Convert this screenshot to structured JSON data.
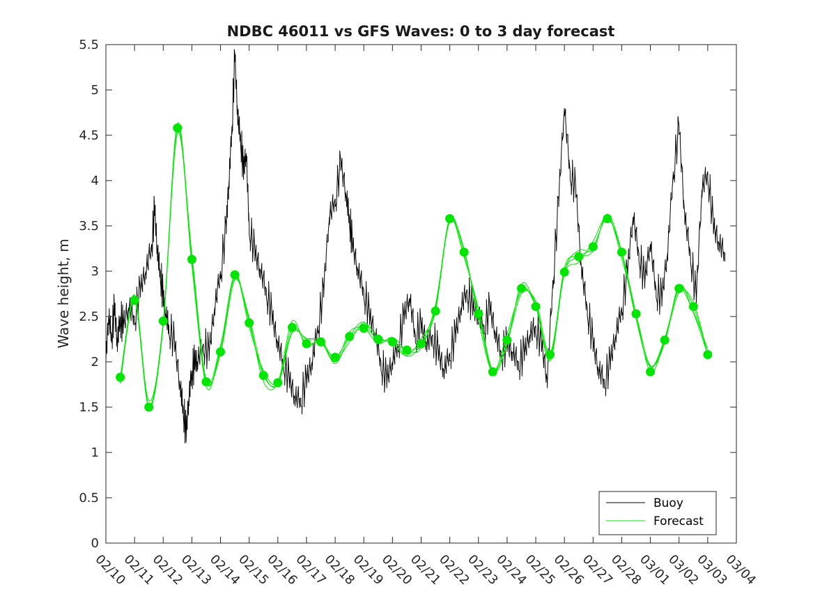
{
  "chart_data": {
    "type": "line",
    "title": "NDBC 46011 vs GFS Waves: 0 to 3 day forecast",
    "xlabel": "",
    "ylabel": "Wave height, m",
    "xlim": [
      0,
      22
    ],
    "ylim": [
      0,
      5.5
    ],
    "y_ticks": [
      "0",
      "0.5",
      "1",
      "1.5",
      "2",
      "2.5",
      "3",
      "3.5",
      "4",
      "4.5",
      "5",
      "5.5"
    ],
    "x_tick_labels": [
      "02/10",
      "02/11",
      "02/12",
      "02/13",
      "02/14",
      "02/15",
      "02/16",
      "02/17",
      "02/18",
      "02/19",
      "02/20",
      "02/21",
      "02/22",
      "02/23",
      "02/24",
      "02/25",
      "02/26",
      "02/27",
      "02/28",
      "03/01",
      "03/02",
      "03/03",
      "03/04"
    ],
    "legend_position": "bottom-right",
    "colors": {
      "buoy": "#000000",
      "forecast": "#00e600"
    },
    "series": [
      {
        "name": "Buoy",
        "x": [
          0,
          0.1,
          0.2,
          0.3,
          0.4,
          0.5,
          0.6,
          0.8,
          1.0,
          1.2,
          1.4,
          1.6,
          1.7,
          1.8,
          1.9,
          2.0,
          2.1,
          2.2,
          2.4,
          2.6,
          2.7,
          2.8,
          2.9,
          3.0,
          3.1,
          3.2,
          3.4,
          3.6,
          3.8,
          4.0,
          4.2,
          4.3,
          4.4,
          4.5,
          4.6,
          4.7,
          4.8,
          4.9,
          5.0,
          5.2,
          5.4,
          5.6,
          5.8,
          6.0,
          6.2,
          6.4,
          6.6,
          6.8,
          7.0,
          7.2,
          7.4,
          7.6,
          7.8,
          8.0,
          8.2,
          8.4,
          8.5,
          8.6,
          8.8,
          9.0,
          9.2,
          9.4,
          9.6,
          9.8,
          10.0,
          10.2,
          10.4,
          10.6,
          10.8,
          11.0,
          11.2,
          11.4,
          11.6,
          11.8,
          12.0,
          12.2,
          12.4,
          12.6,
          12.8,
          13.0,
          13.2,
          13.4,
          13.6,
          13.8,
          14.0,
          14.2,
          14.4,
          14.6,
          14.8,
          15.0,
          15.2,
          15.4,
          15.6,
          15.8,
          16.0,
          16.2,
          16.4,
          16.6,
          16.8,
          17.0,
          17.2,
          17.4,
          17.6,
          17.8,
          18.0,
          18.2,
          18.4,
          18.6,
          18.8,
          19.0,
          19.2,
          19.4,
          19.6,
          19.8,
          20.0,
          20.2,
          20.4,
          20.6,
          20.8,
          21.0,
          21.2,
          21.4,
          21.6
        ],
        "values": [
          2.0,
          2.5,
          2.3,
          2.6,
          2.2,
          2.5,
          2.4,
          2.6,
          2.5,
          2.8,
          3.0,
          3.3,
          3.7,
          3.2,
          3.0,
          2.7,
          2.5,
          2.4,
          2.2,
          1.7,
          1.5,
          1.2,
          1.6,
          1.9,
          2.0,
          2.0,
          2.2,
          2.1,
          2.6,
          3.0,
          3.5,
          4.0,
          4.6,
          5.4,
          4.7,
          4.5,
          4.1,
          4.3,
          3.5,
          3.2,
          3.0,
          2.8,
          2.5,
          2.2,
          2.0,
          1.8,
          1.6,
          1.6,
          1.8,
          2.0,
          2.4,
          2.8,
          3.6,
          3.8,
          4.2,
          3.8,
          3.6,
          3.3,
          3.0,
          2.8,
          2.5,
          2.3,
          2.0,
          1.8,
          2.0,
          2.2,
          2.5,
          2.7,
          2.3,
          2.4,
          2.2,
          2.3,
          2.1,
          1.9,
          2.1,
          2.3,
          2.6,
          2.8,
          2.6,
          2.5,
          2.4,
          2.6,
          2.3,
          2.1,
          2.2,
          2.1,
          2.0,
          2.1,
          2.3,
          2.4,
          2.2,
          1.8,
          2.9,
          3.8,
          4.8,
          4.1,
          3.9,
          3.0,
          2.6,
          2.2,
          1.9,
          1.8,
          2.0,
          2.3,
          2.6,
          3.0,
          3.6,
          3.2,
          2.9,
          3.3,
          2.8,
          2.7,
          3.2,
          4.1,
          4.6,
          3.6,
          3.2,
          2.7,
          3.9,
          4.1,
          3.5,
          3.3,
          3.2
        ]
      },
      {
        "name": "Forecast",
        "x": [
          0.5,
          1.0,
          1.5,
          2.0,
          2.5,
          3.0,
          3.5,
          4.0,
          4.5,
          5.0,
          5.5,
          6.0,
          6.5,
          7.0,
          7.5,
          8.0,
          8.5,
          9.0,
          9.5,
          10.0,
          10.5,
          11.0,
          11.5,
          12.0,
          12.5,
          13.0,
          13.5,
          14.0,
          14.5,
          15.0,
          15.5,
          16.0,
          16.5,
          17.0,
          17.5,
          18.0,
          18.5,
          19.0,
          19.5,
          20.0,
          20.5,
          21.0
        ],
        "values": [
          1.83,
          2.68,
          1.5,
          2.45,
          4.58,
          3.13,
          1.78,
          2.11,
          2.96,
          2.43,
          1.85,
          1.77,
          2.38,
          2.2,
          2.22,
          2.05,
          2.28,
          2.37,
          2.25,
          2.22,
          2.13,
          2.2,
          2.56,
          3.58,
          3.21,
          2.53,
          1.89,
          2.24,
          2.81,
          2.61,
          2.08,
          2.99,
          3.16,
          3.27,
          3.58,
          3.21,
          2.53,
          1.89,
          2.24,
          2.81,
          2.61,
          2.08
        ]
      }
    ]
  }
}
